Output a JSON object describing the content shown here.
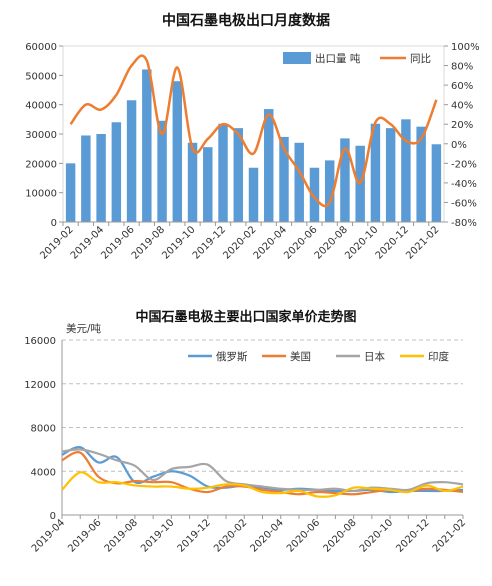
{
  "chart_data": [
    {
      "type": "bar+line",
      "title": "中国石墨电极出口月度数据",
      "categories": [
        "2019-02",
        "2019-03",
        "2019-04",
        "2019-05",
        "2019-06",
        "2019-07",
        "2019-08",
        "2019-09",
        "2019-10",
        "2019-11",
        "2019-12",
        "2020-01",
        "2020-02",
        "2020-03",
        "2020-04",
        "2020-05",
        "2020-06",
        "2020-07",
        "2020-08",
        "2020-09",
        "2020-10",
        "2020-11",
        "2020-12",
        "2021-01",
        "2021-02"
      ],
      "x_tick_labels": [
        "2019-02",
        "2019-04",
        "2019-06",
        "2019-08",
        "2019-10",
        "2019-12",
        "2020-02",
        "2020-04",
        "2020-06",
        "2020-08",
        "2020-10",
        "2020-12",
        "2021-02"
      ],
      "y_left": {
        "min": 0,
        "max": 60000,
        "ticks": [
          "0",
          "10000",
          "20000",
          "30000",
          "40000",
          "50000",
          "60000"
        ]
      },
      "y_right": {
        "min": -80,
        "max": 100,
        "ticks": [
          "-80%",
          "-60%",
          "-40%",
          "-20%",
          "0%",
          "20%",
          "40%",
          "60%",
          "80%",
          "100%"
        ]
      },
      "series": [
        {
          "name": "出口量 吨",
          "kind": "bar",
          "axis": "left",
          "color": "#5b9bd5",
          "values": [
            20000,
            29500,
            30000,
            34000,
            41500,
            52000,
            34500,
            48000,
            27000,
            25500,
            33500,
            32000,
            18500,
            38500,
            29000,
            27000,
            18500,
            21000,
            28500,
            26000,
            33500,
            32000,
            35000,
            32500,
            26500
          ]
        },
        {
          "name": "同比",
          "kind": "line",
          "axis": "right",
          "color": "#ed7d31",
          "values": [
            20,
            40,
            35,
            50,
            80,
            85,
            10,
            78,
            -5,
            5,
            20,
            10,
            -10,
            30,
            -5,
            -28,
            -55,
            -60,
            -5,
            -40,
            22,
            20,
            3,
            5,
            45
          ]
        }
      ],
      "legend": {
        "position": "top-right",
        "bar_label": "出口量  吨",
        "line_label": "同比"
      }
    },
    {
      "type": "line",
      "title": "中国石墨电极主要出口国家单价走势图",
      "ylabel": "美元/吨",
      "ylim": [
        0,
        16000
      ],
      "y_tick_labels": [
        "0",
        "4000",
        "8000",
        "12000",
        "16000"
      ],
      "x_tick_labels": [
        "2019-04",
        "2019-06",
        "2019-08",
        "2019-10",
        "2019-12",
        "2020-02",
        "2020-04",
        "2020-06",
        "2020-08",
        "2020-10",
        "2020-12",
        "2021-02"
      ],
      "categories": [
        "2019-04",
        "2019-05",
        "2019-06",
        "2019-07",
        "2019-08",
        "2019-09",
        "2019-10",
        "2019-11",
        "2019-12",
        "2020-01",
        "2020-02",
        "2020-03",
        "2020-04",
        "2020-05",
        "2020-06",
        "2020-07",
        "2020-08",
        "2020-09",
        "2020-10",
        "2020-11",
        "2020-12",
        "2021-01",
        "2021-02"
      ],
      "series": [
        {
          "name": "俄罗斯",
          "color": "#5b9bd5",
          "values": [
            5500,
            6200,
            4800,
            5300,
            3000,
            3500,
            4000,
            3600,
            2600,
            2500,
            2700,
            2500,
            2300,
            2400,
            2300,
            2200,
            2200,
            2300,
            2100,
            2200,
            2200,
            2200,
            2300
          ]
        },
        {
          "name": "美国",
          "color": "#ed7d31",
          "values": [
            5000,
            5700,
            3500,
            2900,
            3100,
            3000,
            3000,
            2400,
            2100,
            2600,
            2600,
            2300,
            2100,
            1900,
            2100,
            2000,
            1900,
            2100,
            2300,
            2200,
            2400,
            2300,
            2100
          ]
        },
        {
          "name": "日本",
          "color": "#a5a5a5",
          "values": [
            5800,
            6000,
            5600,
            5000,
            4500,
            3200,
            4200,
            4400,
            4600,
            3100,
            2800,
            2600,
            2400,
            2300,
            2300,
            2400,
            2200,
            2500,
            2400,
            2300,
            2900,
            3000,
            2800
          ]
        },
        {
          "name": "印度",
          "color": "#ffc000",
          "values": [
            2300,
            3900,
            3000,
            3000,
            2700,
            2600,
            2600,
            2400,
            2500,
            2800,
            2700,
            2100,
            2000,
            2200,
            1700,
            1800,
            2500,
            2400,
            2300,
            2100,
            2700,
            2200,
            2600
          ]
        }
      ],
      "legend": {
        "position": "top"
      }
    }
  ]
}
